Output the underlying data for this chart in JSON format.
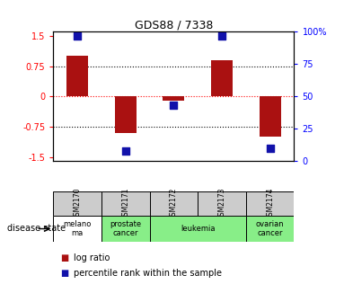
{
  "title": "GDS88 / 7338",
  "samples": [
    "GSM2170",
    "GSM2171",
    "GSM2172",
    "GSM2173",
    "GSM2174"
  ],
  "log_ratios": [
    1.0,
    -0.9,
    -0.1,
    0.9,
    -1.0
  ],
  "percentile_ranks": [
    97,
    8,
    43,
    97,
    10
  ],
  "ylim_left": [
    -1.6,
    1.6
  ],
  "ylim_right": [
    0,
    100
  ],
  "yticks_left": [
    -1.5,
    -0.75,
    0,
    0.75,
    1.5
  ],
  "yticks_right": [
    0,
    25,
    50,
    75,
    100
  ],
  "ytick_labels_left": [
    "-1.5",
    "-0.75",
    "0",
    "0.75",
    "1.5"
  ],
  "ytick_labels_right": [
    "0",
    "25",
    "50",
    "75",
    "100%"
  ],
  "hlines_black": [
    -0.75,
    0.75
  ],
  "hline_red": 0,
  "bar_color": "#aa1111",
  "dot_color": "#1111aa",
  "disease_states": [
    {
      "label": "melano\nma",
      "start": 0,
      "end": 1,
      "color": "#ffffff"
    },
    {
      "label": "prostate\ncancer",
      "start": 1,
      "end": 2,
      "color": "#88ee88"
    },
    {
      "label": "leukemia",
      "start": 2,
      "end": 4,
      "color": "#88ee88"
    },
    {
      "label": "ovarian\ncancer",
      "start": 4,
      "end": 5,
      "color": "#88ee88"
    }
  ],
  "disease_state_label": "disease state",
  "legend_items": [
    {
      "color": "#aa1111",
      "label": "log ratio"
    },
    {
      "color": "#1111aa",
      "label": "percentile rank within the sample"
    }
  ],
  "bar_width": 0.45,
  "dot_size": 40,
  "sample_box_color": "#cccccc"
}
